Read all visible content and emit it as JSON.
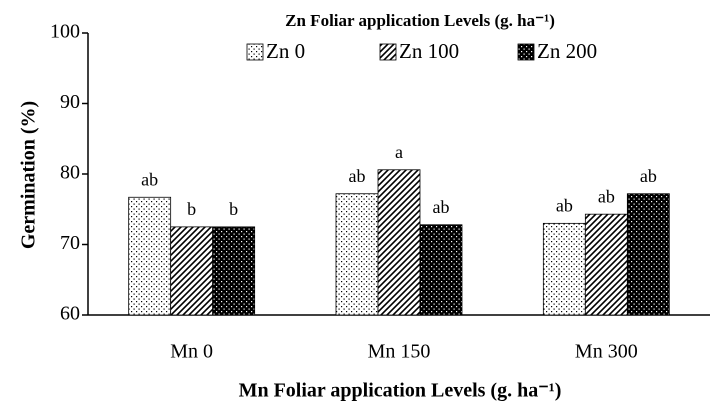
{
  "chart_data": {
    "type": "bar",
    "legend_title": "Zn Foliar application Levels (g. ha⁻¹)",
    "x_label": "Mn Foliar application Levels (g. ha⁻¹)",
    "y_label": "Germination (%)",
    "categories": [
      "Mn 0",
      "Mn 150",
      "Mn 300"
    ],
    "series": [
      {
        "name": "Zn 0",
        "color": "#ffffff",
        "pattern": "dots",
        "values": [
          76.7,
          77.2,
          73.0
        ],
        "letters": [
          "ab",
          "ab",
          "ab"
        ]
      },
      {
        "name": "Zn 100",
        "color": "#ffffff",
        "pattern": "hatch",
        "values": [
          72.5,
          80.6,
          74.3
        ],
        "letters": [
          "b",
          "a",
          "ab"
        ]
      },
      {
        "name": "Zn 200",
        "color": "#000000",
        "pattern": "dots",
        "values": [
          72.5,
          72.8,
          77.2
        ],
        "letters": [
          "b",
          "ab",
          "ab"
        ]
      }
    ],
    "ylim": [
      60,
      100
    ],
    "yticks": [
      60,
      70,
      80,
      90,
      100
    ],
    "grid": false,
    "legend": "top"
  }
}
